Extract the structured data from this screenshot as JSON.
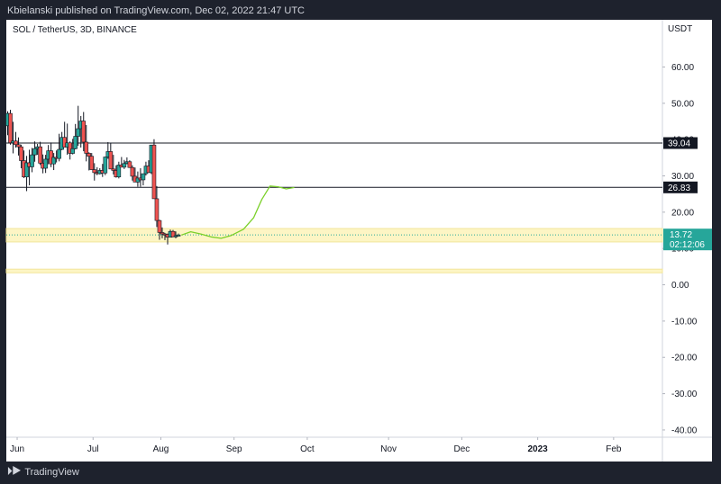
{
  "header": {
    "published": "Kbielanski published on TradingView.com, Dec 02, 2022 21:47 UTC"
  },
  "symbol": "SOL / TetherUS, 3D, BINANCE",
  "footer": {
    "brand": "TradingView"
  },
  "chart_data": {
    "type": "candlestick",
    "currency_label": "USDT",
    "y_ticks": [
      60,
      50,
      40,
      30,
      20,
      10,
      0,
      -10,
      -20,
      -30,
      -40
    ],
    "ylim": [
      -42,
      73
    ],
    "x_labels": [
      "Jun",
      "Jul",
      "Aug",
      "Sep",
      "Oct",
      "Nov",
      "Dec",
      "2023",
      "Feb"
    ],
    "x_label_idx": [
      4,
      32,
      57,
      84,
      111,
      141,
      168,
      196,
      224
    ],
    "x_domain": [
      0,
      242
    ],
    "horizontal_lines": [
      {
        "value": 39.04,
        "label": "39.04"
      },
      {
        "value": 26.83,
        "label": "26.83"
      }
    ],
    "zones": [
      {
        "from": 11.8,
        "to": 15.5
      },
      {
        "from": 3.3,
        "to": 4.3
      }
    ],
    "current_price": {
      "value": 13.72,
      "label": "13.72",
      "countdown": "02:12:06"
    },
    "candles_ohlc": [
      [
        43.8,
        47.8,
        41.2,
        47.2
      ],
      [
        47.2,
        48.2,
        38.6,
        39.1
      ],
      [
        39.1,
        44.9,
        36.2,
        39.6
      ],
      [
        39.6,
        42.1,
        37.8,
        38.6
      ],
      [
        38.6,
        40.6,
        35.6,
        38.0
      ],
      [
        38.0,
        38.6,
        32.1,
        34.2
      ],
      [
        34.2,
        37.0,
        29.4,
        29.7
      ],
      [
        29.7,
        35.5,
        25.8,
        33.6
      ],
      [
        33.6,
        37.2,
        27.4,
        32.5
      ],
      [
        32.5,
        37.7,
        31.0,
        35.8
      ],
      [
        35.8,
        39.5,
        33.9,
        37.5
      ],
      [
        37.5,
        38.8,
        35.8,
        38.0
      ],
      [
        38.0,
        39.4,
        33.0,
        33.5
      ],
      [
        33.5,
        35.9,
        30.7,
        32.1
      ],
      [
        32.1,
        35.8,
        30.8,
        34.6
      ],
      [
        34.6,
        38.5,
        33.2,
        36.9
      ],
      [
        36.9,
        39.2,
        32.4,
        33.3
      ],
      [
        33.3,
        36.3,
        31.6,
        35.1
      ],
      [
        35.1,
        37.0,
        33.7,
        34.8
      ],
      [
        34.8,
        41.6,
        34.0,
        37.3
      ],
      [
        37.3,
        42.1,
        37.1,
        40.6
      ],
      [
        40.6,
        44.9,
        38.8,
        37.9
      ],
      [
        37.9,
        44.4,
        35.8,
        39.1
      ],
      [
        39.1,
        39.5,
        34.5,
        36.2
      ],
      [
        36.2,
        40.2,
        35.9,
        37.5
      ],
      [
        37.5,
        44.3,
        37.3,
        40.9
      ],
      [
        40.9,
        49.3,
        38.3,
        43.0
      ],
      [
        43.0,
        46.5,
        37.8,
        45.1
      ],
      [
        45.1,
        47.6,
        36.8,
        39.3
      ],
      [
        39.3,
        44.0,
        34.0,
        36.2
      ],
      [
        36.2,
        36.5,
        31.5,
        35.4
      ],
      [
        35.4,
        36.3,
        31.7,
        31.7
      ],
      [
        31.7,
        33.5,
        28.7,
        30.9
      ],
      [
        30.9,
        32.4,
        30.2,
        30.6
      ],
      [
        30.6,
        32.1,
        30.4,
        31.5
      ],
      [
        31.5,
        33.3,
        29.7,
        30.8
      ],
      [
        30.8,
        35.3,
        30.2,
        35.2
      ],
      [
        35.2,
        39.3,
        34.7,
        36.7
      ],
      [
        36.7,
        39.1,
        33.3,
        31.9
      ],
      [
        31.9,
        35.8,
        30.4,
        31.5
      ],
      [
        31.5,
        32.9,
        29.5,
        29.7
      ],
      [
        29.7,
        33.9,
        29.3,
        33.0
      ],
      [
        33.0,
        35.2,
        32.6,
        32.4
      ],
      [
        32.4,
        34.4,
        31.9,
        33.4
      ],
      [
        33.4,
        35.1,
        33.2,
        33.9
      ],
      [
        33.9,
        34.3,
        32.2,
        32.3
      ],
      [
        32.3,
        32.9,
        28.7,
        29.9
      ],
      [
        29.9,
        32.3,
        29.7,
        28.3
      ],
      [
        28.3,
        31.2,
        27.0,
        29.4
      ],
      [
        29.4,
        32.1,
        27.0,
        28.9
      ],
      [
        28.9,
        30.1,
        27.4,
        30.6
      ],
      [
        30.6,
        33.9,
        30.1,
        32.7
      ],
      [
        32.7,
        34.3,
        30.9,
        30.9
      ],
      [
        30.9,
        38.1,
        30.5,
        38.5
      ],
      [
        38.5,
        40.1,
        33.2,
        23.7
      ],
      [
        23.7,
        27.2,
        15.9,
        17.7
      ],
      [
        17.7,
        17.9,
        12.4,
        14.4
      ],
      [
        14.4,
        15.8,
        12.8,
        14.0
      ],
      [
        14.0,
        14.3,
        12.3,
        13.9
      ],
      [
        13.9,
        14.1,
        11.1,
        13.1
      ],
      [
        13.1,
        15.2,
        13.1,
        14.7
      ],
      [
        14.7,
        15.1,
        13.5,
        13.2
      ],
      [
        13.2,
        14.7,
        12.8,
        13.5
      ],
      [
        13.5,
        14.1,
        13.4,
        13.7
      ]
    ],
    "projection": {
      "color": "#7bd02a",
      "points": [
        [
          13.7,
          13.7
        ],
        [
          16.0,
          14.6
        ],
        [
          18.5,
          14.0
        ],
        [
          21.0,
          13.2
        ],
        [
          23.5,
          12.8
        ],
        [
          26.0,
          13.6
        ],
        [
          29.0,
          15.3
        ],
        [
          31.5,
          18.5
        ],
        [
          33.5,
          23.5
        ],
        [
          35.5,
          27.2
        ],
        [
          37.5,
          27.0
        ],
        [
          39.5,
          26.4
        ],
        [
          41.5,
          26.8
        ]
      ]
    },
    "colors": {
      "up": "#26a69a",
      "down": "#ef5350",
      "zone": "#fdf5c4",
      "zone_border": "#f2e59b",
      "price_box": "#26a69a"
    }
  }
}
